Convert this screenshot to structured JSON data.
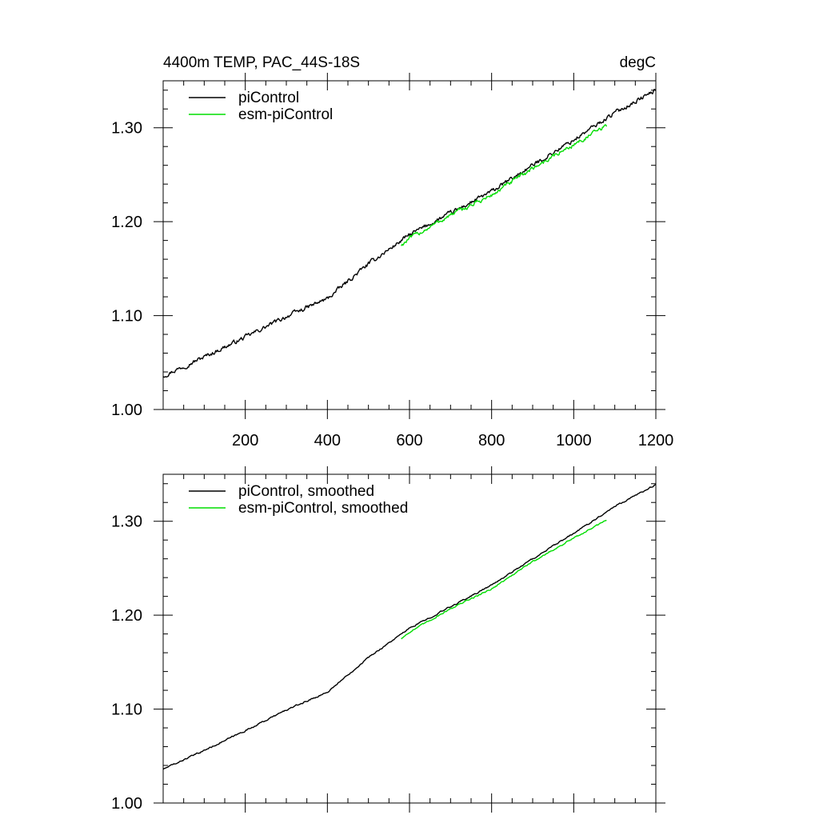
{
  "chart_data": [
    {
      "type": "line",
      "title": "4400m TEMP, PAC_44S-18S",
      "units_label": "degC",
      "xlim": [
        0,
        1200
      ],
      "ylim": [
        1.0,
        1.35
      ],
      "x_ticks": [
        200,
        400,
        600,
        800,
        1000,
        1200
      ],
      "x_tick_labels": [
        "200",
        "400",
        "600",
        "800",
        "1000",
        "1200"
      ],
      "y_ticks": [
        1.0,
        1.1,
        1.2,
        1.3
      ],
      "y_tick_labels": [
        "1.00",
        "1.10",
        "1.20",
        "1.30"
      ],
      "grid": false,
      "legend_position": "top-left",
      "series": [
        {
          "name": "piControl",
          "color": "#000000",
          "noise": 0.0018,
          "x": [
            0,
            100,
            200,
            300,
            400,
            500,
            600,
            700,
            800,
            900,
            1000,
            1100,
            1200
          ],
          "y": [
            1.036,
            1.056,
            1.077,
            1.099,
            1.118,
            1.155,
            1.186,
            1.209,
            1.232,
            1.26,
            1.287,
            1.316,
            1.34
          ]
        },
        {
          "name": "esm-piControl",
          "color": "#00dd00",
          "noise": 0.0018,
          "x": [
            580,
            600,
            700,
            800,
            900,
            1000,
            1080
          ],
          "y": [
            1.175,
            1.182,
            1.207,
            1.228,
            1.257,
            1.282,
            1.302
          ]
        }
      ]
    },
    {
      "type": "line",
      "title": "",
      "units_label": "",
      "xlim": [
        0,
        1200
      ],
      "ylim": [
        1.0,
        1.35
      ],
      "x_ticks": [
        200,
        400,
        600,
        800,
        1000,
        1200
      ],
      "x_tick_labels": [],
      "y_ticks": [
        1.0,
        1.1,
        1.2,
        1.3
      ],
      "y_tick_labels": [
        "1.00",
        "1.10",
        "1.20",
        "1.30"
      ],
      "grid": false,
      "legend_position": "top-left",
      "series": [
        {
          "name": "piControl, smoothed",
          "color": "#000000",
          "noise": 0.0006,
          "x": [
            0,
            100,
            200,
            300,
            400,
            500,
            600,
            700,
            800,
            900,
            1000,
            1100,
            1200
          ],
          "y": [
            1.036,
            1.056,
            1.077,
            1.099,
            1.118,
            1.155,
            1.186,
            1.209,
            1.232,
            1.26,
            1.287,
            1.316,
            1.339
          ]
        },
        {
          "name": "esm-piControl, smoothed",
          "color": "#00dd00",
          "noise": 0.0006,
          "x": [
            580,
            600,
            700,
            800,
            900,
            1000,
            1080
          ],
          "y": [
            1.175,
            1.182,
            1.207,
            1.228,
            1.257,
            1.282,
            1.301
          ]
        }
      ]
    }
  ]
}
